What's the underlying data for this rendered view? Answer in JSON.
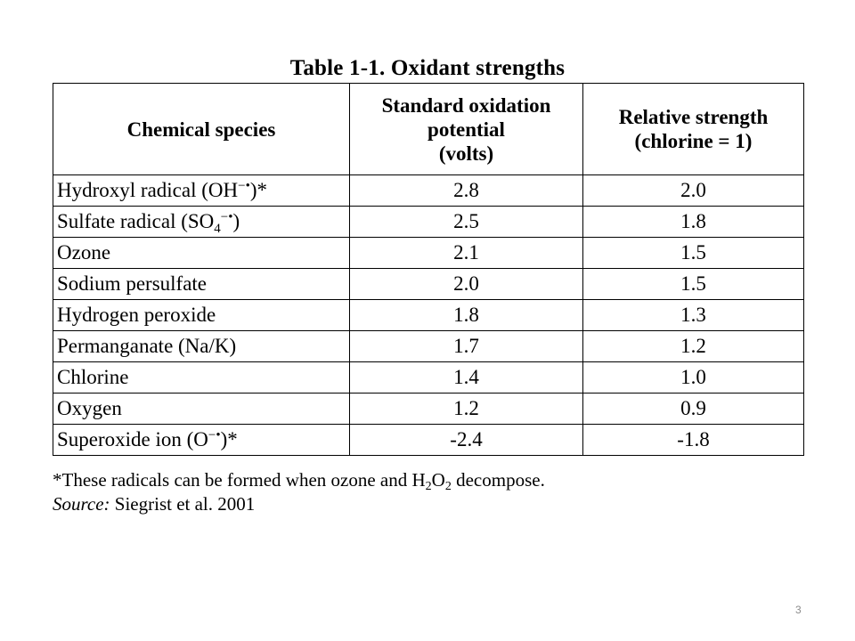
{
  "title": "Table 1-1. Oxidant strengths",
  "table": {
    "headers": [
      [
        "Chemical species"
      ],
      [
        "Standard oxidation",
        "potential",
        "(volts)"
      ],
      [
        "Relative strength",
        "(chlorine  =  1)"
      ]
    ],
    "rows": [
      {
        "species": {
          "pre": "Hydroxyl radical (OH",
          "sup": "−•",
          "post": ")*"
        },
        "potential": "2.8",
        "strength": "2.0"
      },
      {
        "species": {
          "pre": "Sulfate radical (SO",
          "sub": "4",
          "sup": "−•",
          "post": ")"
        },
        "potential": "2.5",
        "strength": "1.8"
      },
      {
        "species": {
          "pre": "Ozone"
        },
        "potential": "2.1",
        "strength": "1.5"
      },
      {
        "species": {
          "pre": "Sodium persulfate"
        },
        "potential": "2.0",
        "strength": "1.5"
      },
      {
        "species": {
          "pre": "Hydrogen peroxide"
        },
        "potential": "1.8",
        "strength": "1.3"
      },
      {
        "species": {
          "pre": "Permanganate (Na/K)"
        },
        "potential": "1.7",
        "strength": "1.2"
      },
      {
        "species": {
          "pre": "Chlorine"
        },
        "potential": "1.4",
        "strength": "1.0"
      },
      {
        "species": {
          "pre": "Oxygen"
        },
        "potential": "1.2",
        "strength": "0.9"
      },
      {
        "species": {
          "pre": "Superoxide ion (O",
          "sup": "−•",
          "post": ")*"
        },
        "potential": "-2.4",
        "strength": "-1.8"
      }
    ]
  },
  "footnote": {
    "pre": "*These radicals can be formed when ozone and H",
    "sub1": "2",
    "mid": "O",
    "sub2": "2",
    "post": " decompose."
  },
  "source": {
    "label": "Source:",
    "text": " Siegrist et al. 2001"
  },
  "page_number": "3"
}
